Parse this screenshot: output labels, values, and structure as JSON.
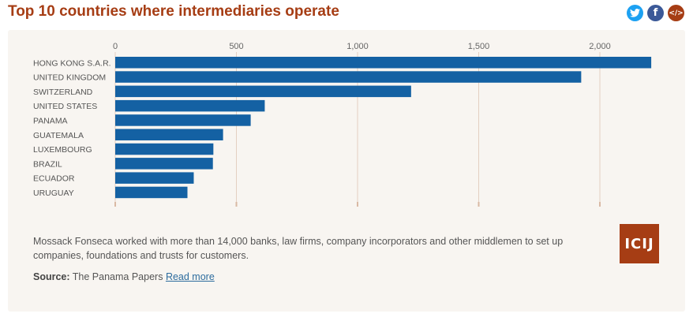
{
  "header": {
    "title": "Top 10 countries where intermediaries operate",
    "share": {
      "twitter": "t",
      "facebook": "f",
      "embed": "</>"
    }
  },
  "colors": {
    "bar": "#1461a3",
    "title": "#a63d14",
    "grid": "#e3cfc1",
    "panel": "#f8f5f1"
  },
  "chart_data": {
    "type": "bar",
    "orientation": "horizontal",
    "categories": [
      "HONG KONG S.A.R.",
      "UNITED KINGDOM",
      "SWITZERLAND",
      "UNITED STATES",
      "PANAMA",
      "GUATEMALA",
      "LUXEMBOURG",
      "BRAZIL",
      "ECUADOR",
      "URUGUAY"
    ],
    "values": [
      2212,
      1923,
      1221,
      617,
      559,
      445,
      405,
      403,
      324,
      298
    ],
    "xlim": [
      0,
      2200
    ],
    "ticks": [
      0,
      500,
      1000,
      1500,
      2000
    ],
    "tick_labels": [
      "0",
      "500",
      "1,000",
      "1,500",
      "2,000"
    ],
    "grid": true,
    "title": "",
    "xlabel": "",
    "ylabel": ""
  },
  "footer": {
    "caption": "Mossack Fonseca worked with more than 14,000 banks, law firms, company incorporators and other middlemen to set up companies, foundations and trusts for customers.",
    "source_label": "Source:",
    "source_text": "The Panama Papers",
    "read_more": "Read more",
    "logo": "ICIJ"
  }
}
